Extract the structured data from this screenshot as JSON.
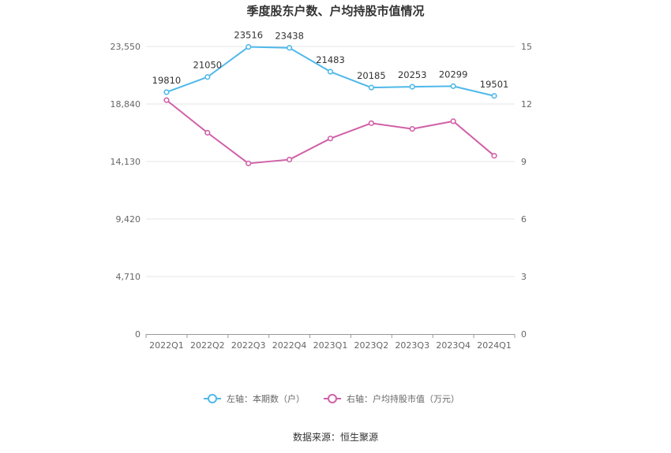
{
  "chart_data": {
    "type": "line",
    "title": "季度股东户数、户均持股市值情况",
    "categories": [
      "2022Q1",
      "2022Q2",
      "2022Q3",
      "2022Q4",
      "2023Q1",
      "2023Q2",
      "2023Q3",
      "2023Q4",
      "2024Q1"
    ],
    "left_axis": {
      "ticks": [
        "0",
        "4,710",
        "9,420",
        "14,130",
        "18,840",
        "23,550"
      ],
      "ylim": [
        0,
        23550
      ]
    },
    "right_axis": {
      "ticks": [
        "0",
        "3",
        "6",
        "9",
        "12",
        "15"
      ],
      "ylim": [
        0,
        15
      ]
    },
    "series": [
      {
        "name": "左轴：本期数（户）",
        "axis": "left",
        "color": "#4fb8ea",
        "values": [
          19810,
          21050,
          23516,
          23438,
          21483,
          20185,
          20253,
          20299,
          19501
        ],
        "labels": [
          "19810",
          "21050",
          "23516",
          "23438",
          "21483",
          "20185",
          "20253",
          "20299",
          "19501"
        ]
      },
      {
        "name": "右轴：户均持股市值（万元）",
        "axis": "right",
        "color": "#d060a8",
        "values": [
          12.2,
          10.5,
          8.9,
          9.1,
          10.2,
          11.0,
          10.7,
          11.1,
          9.3
        ]
      }
    ],
    "grid": true,
    "legend_position": "bottom-center"
  },
  "source": "数据来源：恒生聚源"
}
